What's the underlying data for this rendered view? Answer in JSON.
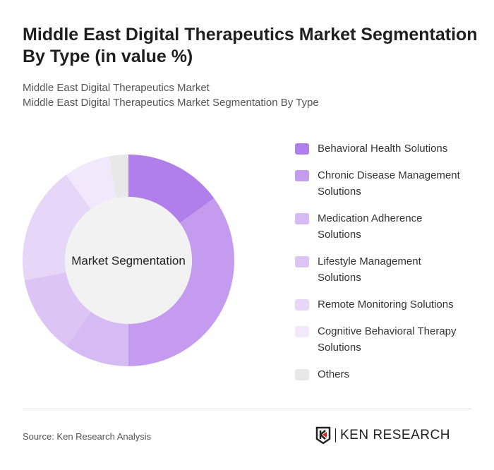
{
  "title": "Middle East Digital Therapeutics Market Segmentation By Type (in value %)",
  "subtitle_lines": [
    "Middle East Digital Therapeutics Market",
    "Middle East Digital Therapeutics Market Segmentation By Type"
  ],
  "source": "Source: Ken Research Analysis",
  "logo_text": "KEN RESEARCH",
  "chart_data": {
    "type": "pie",
    "variant": "donut",
    "center_label": "Market Segmentation",
    "legend_position": "right",
    "categories": [
      "Behavioral Health Solutions",
      "Chronic Disease Management Solutions",
      "Medication Adherence Solutions",
      "Lifestyle Management Solutions",
      "Remote Monitoring Solutions",
      "Cognitive Behavioral Therapy Solutions",
      "Others"
    ],
    "values": [
      15,
      35,
      10,
      12,
      18,
      7,
      3
    ],
    "colors": [
      "#b07fea",
      "#c49bee",
      "#d5baf3",
      "#dcc5f4",
      "#e6d6f8",
      "#f1e9fb",
      "#e8e8e8"
    ]
  },
  "legend": [
    {
      "line1": "Behavioral Health Solutions",
      "line2": ""
    },
    {
      "line1": "Chronic Disease Management",
      "line2": "Solutions"
    },
    {
      "line1": "Medication Adherence",
      "line2": "Solutions"
    },
    {
      "line1": "Lifestyle Management",
      "line2": "Solutions"
    },
    {
      "line1": "Remote Monitoring Solutions",
      "line2": ""
    },
    {
      "line1": "Cognitive Behavioral Therapy",
      "line2": "Solutions"
    },
    {
      "line1": "Others",
      "line2": ""
    }
  ]
}
